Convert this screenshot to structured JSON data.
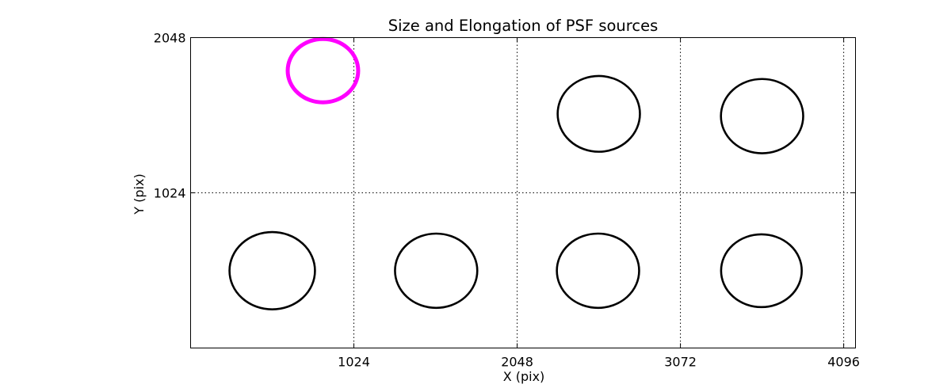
{
  "figure": {
    "background": "#ffffff",
    "foreground": "#000000"
  },
  "chart_data": {
    "type": "scatter",
    "title": "Size and Elongation of PSF sources",
    "xlabel": "X (pix)",
    "ylabel": "Y (pix)",
    "xlim": [
      0,
      4170
    ],
    "ylim": [
      0,
      2048
    ],
    "xticks": [
      1024,
      2048,
      3072,
      4096
    ],
    "yticks": [
      1024,
      2048
    ],
    "grid": {
      "style": "dotted",
      "color": "#000000",
      "x_at": [
        1024,
        2048,
        3072,
        4096
      ],
      "y_at": [
        1024
      ]
    },
    "legend": "none",
    "marker_shape": "ellipse-outline",
    "ellipses": [
      {
        "role": "reference-psf",
        "x": 830,
        "y": 1830,
        "a_pix": 221,
        "b_pix": 209,
        "color": "#ff00ff",
        "stroke_px": 5
      },
      {
        "role": "psf-source",
        "x": 512,
        "y": 510,
        "a_pix": 268,
        "b_pix": 255,
        "color": "#000000",
        "stroke_px": 2.6
      },
      {
        "role": "psf-source",
        "x": 1540,
        "y": 510,
        "a_pix": 258,
        "b_pix": 245,
        "color": "#000000",
        "stroke_px": 2.6
      },
      {
        "role": "psf-source",
        "x": 2555,
        "y": 510,
        "a_pix": 258,
        "b_pix": 245,
        "color": "#000000",
        "stroke_px": 2.6
      },
      {
        "role": "psf-source",
        "x": 3580,
        "y": 510,
        "a_pix": 253,
        "b_pix": 240,
        "color": "#000000",
        "stroke_px": 2.6
      },
      {
        "role": "psf-source",
        "x": 2560,
        "y": 1545,
        "a_pix": 258,
        "b_pix": 250,
        "color": "#000000",
        "stroke_px": 2.6
      },
      {
        "role": "psf-source",
        "x": 3584,
        "y": 1530,
        "a_pix": 258,
        "b_pix": 245,
        "color": "#000000",
        "stroke_px": 2.6
      }
    ],
    "accent_color": "#ff00ff"
  }
}
